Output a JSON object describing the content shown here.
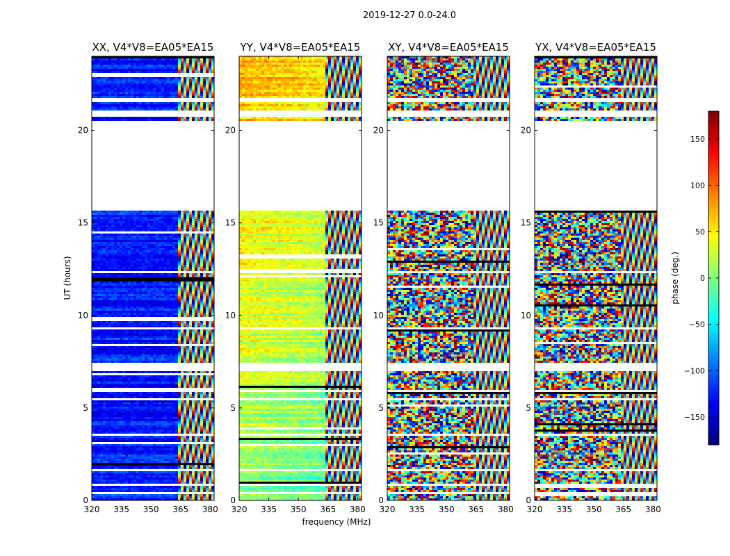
{
  "chart_data": {
    "type": "heatmap",
    "title": "2019-12-27 0.0-24.0",
    "xlabel": "frequency (MHz)",
    "ylabel": "UT (hours)",
    "xlim": [
      320,
      382
    ],
    "ylim": [
      0,
      24
    ],
    "x_ticks": [
      320,
      335,
      350,
      365,
      380
    ],
    "y_ticks": [
      0,
      5,
      10,
      15,
      20
    ],
    "colorbar": {
      "label": "phase (deg.)",
      "range": [
        -180,
        180
      ],
      "ticks": [
        -150,
        -100,
        -50,
        0,
        50,
        100,
        150
      ],
      "tick_labels": [
        "−150",
        "−100",
        "−50",
        "0",
        "50",
        "100",
        "150"
      ],
      "colormap": [
        "#00007f",
        "#0000ff",
        "#007fff",
        "#00ffff",
        "#7fff7f",
        "#ffff00",
        "#ff7f00",
        "#ff0000",
        "#7f0000"
      ]
    },
    "panels": [
      {
        "title": "XX, V4*V8=EA05*EA15",
        "polarization": "XX",
        "mean_phase": -125,
        "spread": 35
      },
      {
        "title": "YY, V4*V8=EA05*EA15",
        "polarization": "YY",
        "mean_phase": 40,
        "spread": 40
      },
      {
        "title": "XY, V4*V8=EA05*EA15",
        "polarization": "XY",
        "mean_phase": 0,
        "spread": 180
      },
      {
        "title": "YX, V4*V8=EA05*EA15",
        "polarization": "YX",
        "mean_phase": 0,
        "spread": 180
      }
    ],
    "data_gaps_hours": [
      [
        0.45,
        0.55
      ],
      [
        0.9,
        1.0
      ],
      [
        1.6,
        1.75
      ],
      [
        3.05,
        3.15
      ],
      [
        3.55,
        3.7
      ],
      [
        5.45,
        5.55
      ],
      [
        5.95,
        6.0
      ],
      [
        7.0,
        7.45
      ],
      [
        9.35,
        9.45
      ],
      [
        12.3,
        12.5
      ],
      [
        15.7,
        20.55
      ],
      [
        20.75,
        21.1
      ],
      [
        21.55,
        21.75
      ]
    ],
    "flag_row_fraction": 0.04,
    "high_freq_break_mhz": 363
  }
}
